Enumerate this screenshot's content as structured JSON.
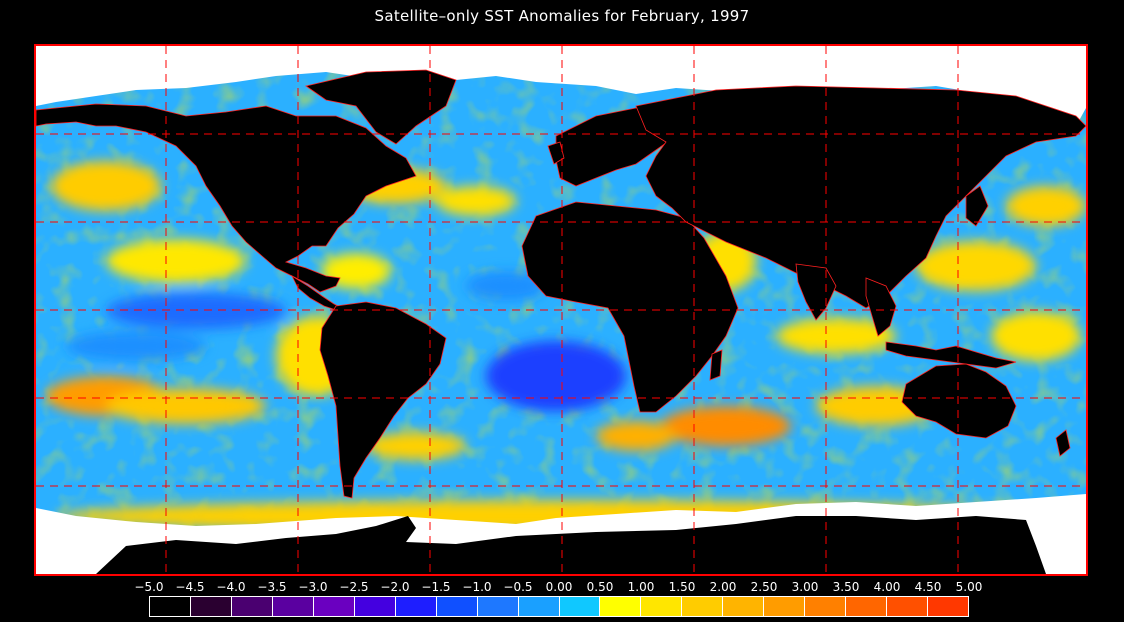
{
  "title": "Satellite–only SST Anomalies for February, 1997",
  "map": {
    "land_color": "#000000",
    "ice_color": "#ffffff",
    "border_color": "#ff1010",
    "grid_color": "#ff0000"
  },
  "legend": {
    "labels": [
      "−5.0",
      "−4.5",
      "−4.0",
      "−3.5",
      "−3.0",
      "−2.5",
      "−2.0",
      "−1.5",
      "−1.0",
      "−0.5",
      "0.00",
      "0.50",
      "1.00",
      "1.50",
      "2.00",
      "2.50",
      "3.00",
      "3.50",
      "4.00",
      "4.50",
      "5.00"
    ],
    "colors": [
      "#000000",
      "#2a0030",
      "#4a0070",
      "#5a00a0",
      "#6a00c0",
      "#4400e0",
      "#1e1eff",
      "#1050ff",
      "#1e78ff",
      "#1aa0ff",
      "#10c8ff",
      "#ffff00",
      "#ffe600",
      "#ffcc00",
      "#ffb400",
      "#ff9c00",
      "#ff8000",
      "#ff6600",
      "#ff5000",
      "#ff3800",
      "#ff1e00"
    ]
  }
}
